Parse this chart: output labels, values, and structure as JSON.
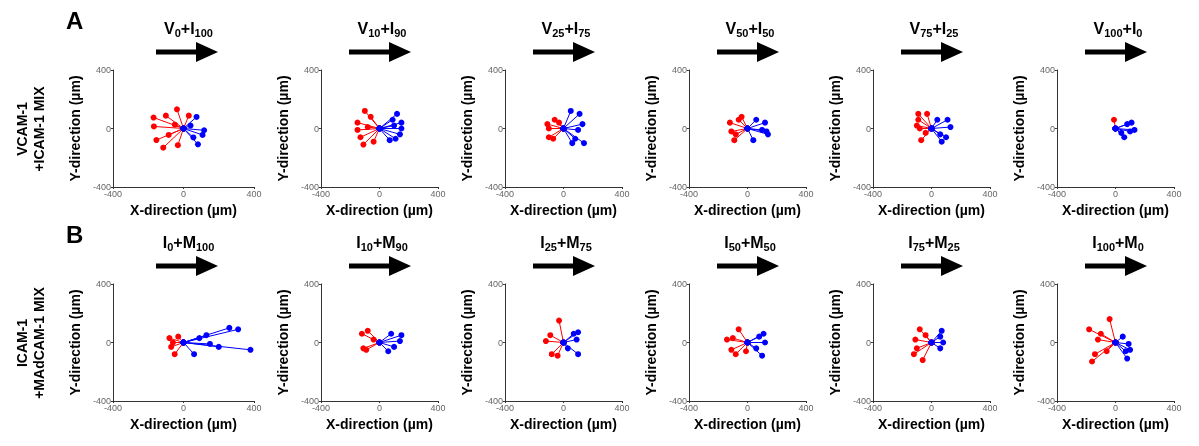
{
  "chart_data": [
    {
      "type": "line",
      "title": "V$_{0}$+I$_{100}$",
      "grid": false,
      "xlabel": "X-direction (µm)",
      "ylabel": "Y-direction (µm)",
      "annotations": [
        "A",
        "VCAM-1\n+ICAM-1 MIX"
      ],
      "xlim": [
        -400,
        400
      ],
      "ylim": [
        -400,
        400
      ],
      "xticks": [
        -400,
        0,
        400
      ],
      "yticks": [
        -400,
        0,
        400
      ],
      "marker": "circle",
      "series": [
        {
          "color": "#ff0000",
          "x": [
            0,
            -170
          ],
          "values": [
            0,
            75
          ]
        },
        {
          "color": "#ff0000",
          "x": [
            0,
            -168
          ],
          "values": [
            0,
            14
          ]
        },
        {
          "color": "#ff0000",
          "x": [
            0,
            -115
          ],
          "values": [
            0,
            -131
          ]
        },
        {
          "color": "#ff0000",
          "x": [
            0,
            -37
          ],
          "values": [
            0,
            131
          ]
        },
        {
          "color": "#ff0000",
          "x": [
            0,
            -100
          ],
          "values": [
            0,
            88
          ]
        },
        {
          "color": "#ff0000",
          "x": [
            0,
            -154
          ],
          "values": [
            0,
            -79
          ]
        },
        {
          "color": "#ff0000",
          "x": [
            0,
            -32
          ],
          "values": [
            0,
            -114
          ]
        },
        {
          "color": "#ff0000",
          "x": [
            0,
            30
          ],
          "values": [
            0,
            88
          ]
        },
        {
          "color": "#ff0000",
          "x": [
            0,
            -84
          ],
          "values": [
            0,
            -44
          ]
        },
        {
          "color": "#ff0000",
          "x": [
            0,
            -49
          ],
          "values": [
            0,
            26
          ]
        },
        {
          "color": "#0000ff",
          "x": [
            0,
            117
          ],
          "values": [
            0,
            -12
          ]
        },
        {
          "color": "#0000ff",
          "x": [
            0,
            82
          ],
          "values": [
            0,
            -108
          ]
        },
        {
          "color": "#0000ff",
          "x": [
            0,
            74
          ],
          "values": [
            0,
            79
          ]
        },
        {
          "color": "#0000ff",
          "x": [
            0,
            108
          ],
          "values": [
            0,
            -44
          ]
        },
        {
          "color": "#0000ff",
          "x": [
            0,
            56
          ],
          "values": [
            0,
            -61
          ]
        },
        {
          "color": "#0000ff",
          "x": [
            0,
            40
          ],
          "values": [
            0,
            20
          ]
        }
      ]
    },
    {
      "type": "line",
      "title": "V$_{10}$+I$_{90}$",
      "grid": false,
      "xlabel": "X-direction (µm)",
      "ylabel": "Y-direction (µm)",
      "xlim": [
        -400,
        400
      ],
      "ylim": [
        -400,
        400
      ],
      "xticks": [
        -400,
        0,
        400
      ],
      "yticks": [
        -400,
        0,
        400
      ],
      "marker": "circle",
      "series": [
        {
          "color": "#ff0000",
          "x": [
            0,
            -150
          ],
          "values": [
            0,
            40
          ]
        },
        {
          "color": "#ff0000",
          "x": [
            0,
            -130
          ],
          "values": [
            0,
            -60
          ]
        },
        {
          "color": "#ff0000",
          "x": [
            0,
            -110
          ],
          "values": [
            0,
            -110
          ]
        },
        {
          "color": "#ff0000",
          "x": [
            0,
            -100
          ],
          "values": [
            0,
            120
          ]
        },
        {
          "color": "#ff0000",
          "x": [
            0,
            -60
          ],
          "values": [
            0,
            80
          ]
        },
        {
          "color": "#ff0000",
          "x": [
            0,
            -150
          ],
          "values": [
            0,
            -10
          ]
        },
        {
          "color": "#ff0000",
          "x": [
            0,
            -40
          ],
          "values": [
            0,
            -90
          ]
        },
        {
          "color": "#ff0000",
          "x": [
            0,
            -80
          ],
          "values": [
            0,
            10
          ]
        },
        {
          "color": "#0000ff",
          "x": [
            0,
            150
          ],
          "values": [
            0,
            40
          ]
        },
        {
          "color": "#0000ff",
          "x": [
            0,
            140
          ],
          "values": [
            0,
            -40
          ]
        },
        {
          "color": "#0000ff",
          "x": [
            0,
            120
          ],
          "values": [
            0,
            100
          ]
        },
        {
          "color": "#0000ff",
          "x": [
            0,
            110
          ],
          "values": [
            0,
            -70
          ]
        },
        {
          "color": "#0000ff",
          "x": [
            0,
            90
          ],
          "values": [
            0,
            60
          ]
        },
        {
          "color": "#0000ff",
          "x": [
            0,
            150
          ],
          "values": [
            0,
            0
          ]
        },
        {
          "color": "#0000ff",
          "x": [
            0,
            70
          ],
          "values": [
            0,
            -80
          ]
        },
        {
          "color": "#0000ff",
          "x": [
            0,
            100
          ],
          "values": [
            0,
            20
          ]
        }
      ]
    },
    {
      "type": "line",
      "title": "V$_{25}$+I$_{75}$",
      "grid": false,
      "xlabel": "X-direction (µm)",
      "ylabel": "Y-direction (µm)",
      "xlim": [
        -400,
        400
      ],
      "ylim": [
        -400,
        400
      ],
      "xticks": [
        -400,
        0,
        400
      ],
      "yticks": [
        -400,
        0,
        400
      ],
      "marker": "circle",
      "series": [
        {
          "color": "#ff0000",
          "x": [
            0,
            -110
          ],
          "values": [
            0,
            30
          ]
        },
        {
          "color": "#ff0000",
          "x": [
            0,
            -100
          ],
          "values": [
            0,
            -60
          ]
        },
        {
          "color": "#ff0000",
          "x": [
            0,
            -70
          ],
          "values": [
            0,
            -70
          ]
        },
        {
          "color": "#ff0000",
          "x": [
            0,
            -60
          ],
          "values": [
            0,
            60
          ]
        },
        {
          "color": "#ff0000",
          "x": [
            0,
            -100
          ],
          "values": [
            0,
            0
          ]
        },
        {
          "color": "#ff0000",
          "x": [
            0,
            -30
          ],
          "values": [
            0,
            40
          ]
        },
        {
          "color": "#0000ff",
          "x": [
            0,
            50
          ],
          "values": [
            0,
            120
          ]
        },
        {
          "color": "#0000ff",
          "x": [
            0,
            110
          ],
          "values": [
            0,
            100
          ]
        },
        {
          "color": "#0000ff",
          "x": [
            0,
            140
          ],
          "values": [
            0,
            -100
          ]
        },
        {
          "color": "#0000ff",
          "x": [
            0,
            130
          ],
          "values": [
            0,
            30
          ]
        },
        {
          "color": "#0000ff",
          "x": [
            0,
            60
          ],
          "values": [
            0,
            -100
          ]
        },
        {
          "color": "#0000ff",
          "x": [
            0,
            80
          ],
          "values": [
            0,
            -70
          ]
        },
        {
          "color": "#0000ff",
          "x": [
            0,
            100
          ],
          "values": [
            0,
            -10
          ]
        }
      ]
    },
    {
      "type": "line",
      "title": "V$_{50}$+I$_{50}$",
      "grid": false,
      "xlabel": "X-direction (µm)",
      "ylabel": "Y-direction (µm)",
      "xlim": [
        -400,
        400
      ],
      "ylim": [
        -400,
        400
      ],
      "xticks": [
        -400,
        0,
        400
      ],
      "yticks": [
        -400,
        0,
        400
      ],
      "marker": "circle",
      "series": [
        {
          "color": "#ff0000",
          "x": [
            0,
            -120
          ],
          "values": [
            0,
            40
          ]
        },
        {
          "color": "#ff0000",
          "x": [
            0,
            -110
          ],
          "values": [
            0,
            -20
          ]
        },
        {
          "color": "#ff0000",
          "x": [
            0,
            -90
          ],
          "values": [
            0,
            -80
          ]
        },
        {
          "color": "#ff0000",
          "x": [
            0,
            -60
          ],
          "values": [
            0,
            60
          ]
        },
        {
          "color": "#ff0000",
          "x": [
            0,
            -40
          ],
          "values": [
            0,
            80
          ]
        },
        {
          "color": "#ff0000",
          "x": [
            0,
            -80
          ],
          "values": [
            0,
            -40
          ]
        },
        {
          "color": "#0000ff",
          "x": [
            0,
            140
          ],
          "values": [
            0,
            -40
          ]
        },
        {
          "color": "#0000ff",
          "x": [
            0,
            120
          ],
          "values": [
            0,
            40
          ]
        },
        {
          "color": "#0000ff",
          "x": [
            0,
            100
          ],
          "values": [
            0,
            -10
          ]
        },
        {
          "color": "#0000ff",
          "x": [
            0,
            40
          ],
          "values": [
            0,
            -80
          ]
        },
        {
          "color": "#0000ff",
          "x": [
            0,
            130
          ],
          "values": [
            0,
            -20
          ]
        },
        {
          "color": "#0000ff",
          "x": [
            0,
            60
          ],
          "values": [
            0,
            60
          ]
        }
      ]
    },
    {
      "type": "line",
      "title": "V$_{75}$+I$_{25}$",
      "grid": false,
      "xlabel": "X-direction (µm)",
      "ylabel": "Y-direction (µm)",
      "xlim": [
        -400,
        400
      ],
      "ylim": [
        -400,
        400
      ],
      "xticks": [
        -400,
        0,
        400
      ],
      "yticks": [
        -400,
        0,
        400
      ],
      "marker": "circle",
      "series": [
        {
          "color": "#ff0000",
          "x": [
            0,
            -90
          ],
          "values": [
            0,
            100
          ]
        },
        {
          "color": "#ff0000",
          "x": [
            0,
            -30
          ],
          "values": [
            0,
            100
          ]
        },
        {
          "color": "#ff0000",
          "x": [
            0,
            -90
          ],
          "values": [
            0,
            60
          ]
        },
        {
          "color": "#ff0000",
          "x": [
            0,
            -80
          ],
          "values": [
            0,
            0
          ]
        },
        {
          "color": "#ff0000",
          "x": [
            0,
            -70
          ],
          "values": [
            0,
            -80
          ]
        },
        {
          "color": "#ff0000",
          "x": [
            0,
            -40
          ],
          "values": [
            0,
            -30
          ]
        },
        {
          "color": "#ff0000",
          "x": [
            0,
            -100
          ],
          "values": [
            0,
            20
          ]
        },
        {
          "color": "#0000ff",
          "x": [
            0,
            130
          ],
          "values": [
            0,
            10
          ]
        },
        {
          "color": "#0000ff",
          "x": [
            0,
            110
          ],
          "values": [
            0,
            60
          ]
        },
        {
          "color": "#0000ff",
          "x": [
            0,
            70
          ],
          "values": [
            0,
            -90
          ]
        },
        {
          "color": "#0000ff",
          "x": [
            0,
            100
          ],
          "values": [
            0,
            -60
          ]
        },
        {
          "color": "#0000ff",
          "x": [
            0,
            40
          ],
          "values": [
            0,
            60
          ]
        },
        {
          "color": "#0000ff",
          "x": [
            0,
            60
          ],
          "values": [
            0,
            -40
          ]
        }
      ]
    },
    {
      "type": "line",
      "title": "V$_{100}$+I$_{0}$",
      "grid": false,
      "xlabel": "X-direction (µm)",
      "ylabel": "Y-direction (µm)",
      "xlim": [
        -400,
        400
      ],
      "ylim": [
        -400,
        400
      ],
      "xticks": [
        -400,
        0,
        400
      ],
      "yticks": [
        -400,
        0,
        400
      ],
      "marker": "circle",
      "series": [
        {
          "color": "#ff0000",
          "x": [
            0,
            -10
          ],
          "values": [
            0,
            60
          ]
        },
        {
          "color": "#0000ff",
          "x": [
            0,
            130
          ],
          "values": [
            0,
            -10
          ]
        },
        {
          "color": "#0000ff",
          "x": [
            0,
            110
          ],
          "values": [
            0,
            40
          ]
        },
        {
          "color": "#0000ff",
          "x": [
            0,
            60
          ],
          "values": [
            0,
            -60
          ]
        },
        {
          "color": "#0000ff",
          "x": [
            0,
            80
          ],
          "values": [
            0,
            30
          ]
        },
        {
          "color": "#0000ff",
          "x": [
            0,
            40
          ],
          "values": [
            0,
            -30
          ]
        },
        {
          "color": "#0000ff",
          "x": [
            0,
            100
          ],
          "values": [
            0,
            -20
          ]
        }
      ]
    },
    {
      "type": "line",
      "title": "I$_{0}$+M$_{100}$",
      "grid": false,
      "xlabel": "X-direction (µm)",
      "ylabel": "Y-direction (µm)",
      "annotations": [
        "B",
        "ICAM-1\n+MAdCAM-1 MIX"
      ],
      "xlim": [
        -400,
        400
      ],
      "ylim": [
        -400,
        400
      ],
      "xticks": [
        -400,
        0,
        400
      ],
      "yticks": [
        -400,
        0,
        400
      ],
      "marker": "circle",
      "series": [
        {
          "color": "#ff0000",
          "x": [
            0,
            -80
          ],
          "values": [
            0,
            30
          ]
        },
        {
          "color": "#ff0000",
          "x": [
            0,
            -70
          ],
          "values": [
            0,
            -30
          ]
        },
        {
          "color": "#ff0000",
          "x": [
            0,
            -50
          ],
          "values": [
            0,
            -80
          ]
        },
        {
          "color": "#ff0000",
          "x": [
            0,
            -60
          ],
          "values": [
            0,
            0
          ]
        },
        {
          "color": "#ff0000",
          "x": [
            0,
            -30
          ],
          "values": [
            0,
            40
          ]
        },
        {
          "color": "#0000ff",
          "x": [
            0,
            380
          ],
          "values": [
            0,
            -50
          ]
        },
        {
          "color": "#0000ff",
          "x": [
            0,
            310
          ],
          "values": [
            0,
            90
          ]
        },
        {
          "color": "#0000ff",
          "x": [
            0,
            260
          ],
          "values": [
            0,
            100
          ]
        },
        {
          "color": "#0000ff",
          "x": [
            0,
            130
          ],
          "values": [
            0,
            50
          ]
        },
        {
          "color": "#0000ff",
          "x": [
            0,
            200
          ],
          "values": [
            0,
            -30
          ]
        },
        {
          "color": "#0000ff",
          "x": [
            0,
            60
          ],
          "values": [
            0,
            -80
          ]
        },
        {
          "color": "#0000ff",
          "x": [
            0,
            90
          ],
          "values": [
            0,
            30
          ]
        },
        {
          "color": "#0000ff",
          "x": [
            0,
            150
          ],
          "values": [
            0,
            -10
          ]
        }
      ]
    },
    {
      "type": "line",
      "title": "I$_{10}$+M$_{90}$",
      "grid": false,
      "xlabel": "X-direction (µm)",
      "ylabel": "Y-direction (µm)",
      "xlim": [
        -400,
        400
      ],
      "ylim": [
        -400,
        400
      ],
      "xticks": [
        -400,
        0,
        400
      ],
      "yticks": [
        -400,
        0,
        400
      ],
      "marker": "circle",
      "series": [
        {
          "color": "#ff0000",
          "x": [
            0,
            -120
          ],
          "values": [
            0,
            60
          ]
        },
        {
          "color": "#ff0000",
          "x": [
            0,
            -110
          ],
          "values": [
            0,
            -40
          ]
        },
        {
          "color": "#ff0000",
          "x": [
            0,
            -80
          ],
          "values": [
            0,
            80
          ]
        },
        {
          "color": "#ff0000",
          "x": [
            0,
            -90
          ],
          "values": [
            0,
            -50
          ]
        },
        {
          "color": "#ff0000",
          "x": [
            0,
            -40
          ],
          "values": [
            0,
            20
          ]
        },
        {
          "color": "#0000ff",
          "x": [
            0,
            150
          ],
          "values": [
            0,
            50
          ]
        },
        {
          "color": "#0000ff",
          "x": [
            0,
            100
          ],
          "values": [
            0,
            -30
          ]
        },
        {
          "color": "#0000ff",
          "x": [
            0,
            60
          ],
          "values": [
            0,
            -60
          ]
        },
        {
          "color": "#0000ff",
          "x": [
            0,
            140
          ],
          "values": [
            0,
            10
          ]
        },
        {
          "color": "#0000ff",
          "x": [
            0,
            80
          ],
          "values": [
            0,
            60
          ]
        }
      ]
    },
    {
      "type": "line",
      "title": "I$_{25}$+M$_{75}$",
      "grid": false,
      "xlabel": "X-direction (µm)",
      "ylabel": "Y-direction (µm)",
      "xlim": [
        -400,
        400
      ],
      "ylim": [
        -400,
        400
      ],
      "xticks": [
        -400,
        0,
        400
      ],
      "yticks": [
        -400,
        0,
        400
      ],
      "marker": "circle",
      "series": [
        {
          "color": "#ff0000",
          "x": [
            0,
            -30
          ],
          "values": [
            0,
            150
          ]
        },
        {
          "color": "#ff0000",
          "x": [
            0,
            -120
          ],
          "values": [
            0,
            10
          ]
        },
        {
          "color": "#ff0000",
          "x": [
            0,
            -80
          ],
          "values": [
            0,
            -80
          ]
        },
        {
          "color": "#ff0000",
          "x": [
            0,
            -90
          ],
          "values": [
            0,
            50
          ]
        },
        {
          "color": "#ff0000",
          "x": [
            0,
            -40
          ],
          "values": [
            0,
            -90
          ]
        },
        {
          "color": "#0000ff",
          "x": [
            0,
            100
          ],
          "values": [
            0,
            70
          ]
        },
        {
          "color": "#0000ff",
          "x": [
            0,
            100
          ],
          "values": [
            0,
            -80
          ]
        },
        {
          "color": "#0000ff",
          "x": [
            0,
            70
          ],
          "values": [
            0,
            60
          ]
        },
        {
          "color": "#0000ff",
          "x": [
            0,
            90
          ],
          "values": [
            0,
            20
          ]
        },
        {
          "color": "#0000ff",
          "x": [
            0,
            30
          ],
          "values": [
            0,
            -40
          ]
        }
      ]
    },
    {
      "type": "line",
      "title": "I$_{50}$+M$_{50}$",
      "grid": false,
      "xlabel": "X-direction (µm)",
      "ylabel": "Y-direction (µm)",
      "xlim": [
        -400,
        400
      ],
      "ylim": [
        -400,
        400
      ],
      "xticks": [
        -400,
        0,
        400
      ],
      "yticks": [
        -400,
        0,
        400
      ],
      "marker": "circle",
      "series": [
        {
          "color": "#ff0000",
          "x": [
            0,
            -140
          ],
          "values": [
            0,
            20
          ]
        },
        {
          "color": "#ff0000",
          "x": [
            0,
            -110
          ],
          "values": [
            0,
            -50
          ]
        },
        {
          "color": "#ff0000",
          "x": [
            0,
            -80
          ],
          "values": [
            0,
            -80
          ]
        },
        {
          "color": "#ff0000",
          "x": [
            0,
            -100
          ],
          "values": [
            0,
            30
          ]
        },
        {
          "color": "#ff0000",
          "x": [
            0,
            -60
          ],
          "values": [
            0,
            90
          ]
        },
        {
          "color": "#ff0000",
          "x": [
            0,
            -10
          ],
          "values": [
            0,
            -60
          ]
        },
        {
          "color": "#0000ff",
          "x": [
            0,
            120
          ],
          "values": [
            0,
            0
          ]
        },
        {
          "color": "#0000ff",
          "x": [
            0,
            100
          ],
          "values": [
            0,
            -90
          ]
        },
        {
          "color": "#0000ff",
          "x": [
            0,
            110
          ],
          "values": [
            0,
            60
          ]
        },
        {
          "color": "#0000ff",
          "x": [
            0,
            60
          ],
          "values": [
            0,
            -40
          ]
        },
        {
          "color": "#0000ff",
          "x": [
            0,
            80
          ],
          "values": [
            0,
            40
          ]
        }
      ]
    },
    {
      "type": "line",
      "title": "I$_{75}$+M$_{25}$",
      "grid": false,
      "xlabel": "X-direction (µm)",
      "ylabel": "Y-direction (µm)",
      "xlim": [
        -400,
        400
      ],
      "ylim": [
        -400,
        400
      ],
      "xticks": [
        -400,
        0,
        400
      ],
      "yticks": [
        -400,
        0,
        400
      ],
      "marker": "circle",
      "series": [
        {
          "color": "#ff0000",
          "x": [
            0,
            -120
          ],
          "values": [
            0,
            -80
          ]
        },
        {
          "color": "#ff0000",
          "x": [
            0,
            -80
          ],
          "values": [
            0,
            90
          ]
        },
        {
          "color": "#ff0000",
          "x": [
            0,
            -110
          ],
          "values": [
            0,
            20
          ]
        },
        {
          "color": "#ff0000",
          "x": [
            0,
            -60
          ],
          "values": [
            0,
            -120
          ]
        },
        {
          "color": "#ff0000",
          "x": [
            0,
            -40
          ],
          "values": [
            0,
            50
          ]
        },
        {
          "color": "#ff0000",
          "x": [
            0,
            -100
          ],
          "values": [
            0,
            -40
          ]
        },
        {
          "color": "#0000ff",
          "x": [
            0,
            70
          ],
          "values": [
            0,
            80
          ]
        },
        {
          "color": "#0000ff",
          "x": [
            0,
            80
          ],
          "values": [
            0,
            0
          ]
        },
        {
          "color": "#0000ff",
          "x": [
            0,
            60
          ],
          "values": [
            0,
            40
          ]
        },
        {
          "color": "#0000ff",
          "x": [
            0,
            60
          ],
          "values": [
            0,
            -40
          ]
        }
      ]
    },
    {
      "type": "line",
      "title": "I$_{100}$+M$_{0}$",
      "grid": false,
      "xlabel": "X-direction (µm)",
      "ylabel": "Y-direction (µm)",
      "xlim": [
        -400,
        400
      ],
      "ylim": [
        -400,
        400
      ],
      "xticks": [
        -400,
        0,
        400
      ],
      "yticks": [
        -400,
        0,
        400
      ],
      "marker": "circle",
      "series": [
        {
          "color": "#ff0000",
          "x": [
            0,
            -180
          ],
          "values": [
            0,
            90
          ]
        },
        {
          "color": "#ff0000",
          "x": [
            0,
            -140
          ],
          "values": [
            0,
            -80
          ]
        },
        {
          "color": "#ff0000",
          "x": [
            0,
            -120
          ],
          "values": [
            0,
            20
          ]
        },
        {
          "color": "#ff0000",
          "x": [
            0,
            -40
          ],
          "values": [
            0,
            160
          ]
        },
        {
          "color": "#ff0000",
          "x": [
            0,
            -160
          ],
          "values": [
            0,
            -130
          ]
        },
        {
          "color": "#ff0000",
          "x": [
            0,
            -60
          ],
          "values": [
            0,
            -60
          ]
        },
        {
          "color": "#ff0000",
          "x": [
            0,
            -100
          ],
          "values": [
            0,
            60
          ]
        },
        {
          "color": "#0000ff",
          "x": [
            0,
            80
          ],
          "values": [
            0,
            -110
          ]
        },
        {
          "color": "#0000ff",
          "x": [
            0,
            100
          ],
          "values": [
            0,
            -50
          ]
        },
        {
          "color": "#0000ff",
          "x": [
            0,
            90
          ],
          "values": [
            0,
            -10
          ]
        },
        {
          "color": "#0000ff",
          "x": [
            0,
            50
          ],
          "values": [
            0,
            40
          ]
        },
        {
          "color": "#0000ff",
          "x": [
            0,
            70
          ],
          "values": [
            0,
            -60
          ]
        }
      ]
    }
  ]
}
